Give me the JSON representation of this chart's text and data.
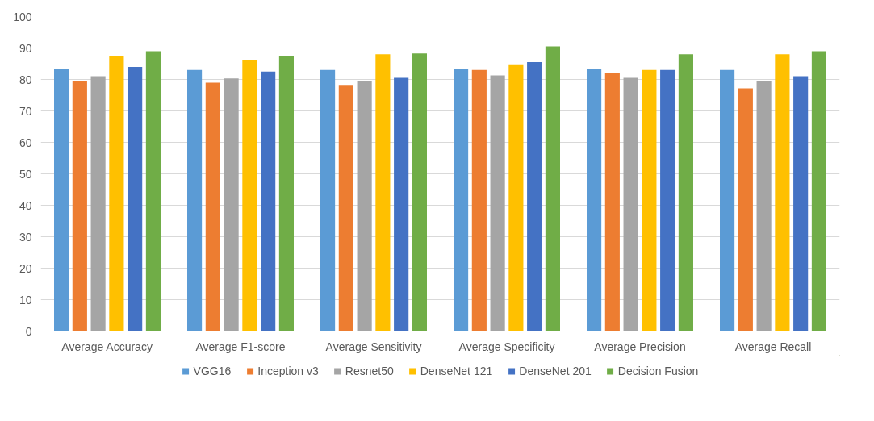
{
  "chart_data": {
    "type": "bar",
    "categories": [
      "Average Accuracy",
      "Average F1-score",
      "Average Sensitivity",
      "Average Specificity",
      "Average Precision",
      "Average Recall"
    ],
    "series": [
      {
        "name": "VGG16",
        "color": "#5b9bd5",
        "values": [
          83.3,
          83,
          83,
          83.3,
          83.3,
          83
        ]
      },
      {
        "name": "Inception v3",
        "color": "#ed7d31",
        "values": [
          79.5,
          79,
          78,
          83,
          82.2,
          77.2
        ]
      },
      {
        "name": "Resnet50",
        "color": "#a5a5a5",
        "values": [
          81,
          80.3,
          79.5,
          81.3,
          80.5,
          79.5
        ]
      },
      {
        "name": "DenseNet 121",
        "color": "#ffc000",
        "values": [
          87.5,
          86.3,
          88,
          84.8,
          83,
          88
        ]
      },
      {
        "name": "DenseNet 201",
        "color": "#4472c4",
        "values": [
          84,
          82.5,
          80.5,
          85.5,
          83,
          81
        ]
      },
      {
        "name": "Decision Fusion",
        "color": "#70ad47",
        "values": [
          89,
          87.5,
          88.3,
          90.5,
          88,
          89
        ]
      }
    ],
    "ylim": [
      0,
      100
    ],
    "yticks": [
      0,
      10,
      20,
      30,
      40,
      50,
      60,
      70,
      80,
      90,
      100
    ],
    "grid": "y",
    "legend": "bottom"
  }
}
